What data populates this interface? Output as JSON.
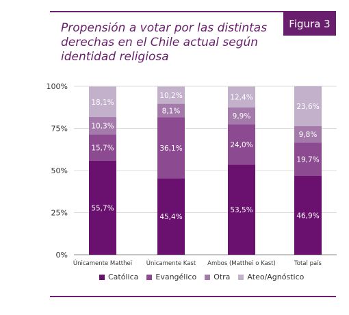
{
  "figure_label": "Figura 3",
  "title": "Propensión a votar por las distintas derechas en el Chile actual según identidad religiosa",
  "chart_data": {
    "type": "bar",
    "stacked": true,
    "categories": [
      "Únicamente Matthei",
      "Únicamente Kast",
      "Ambos (Matthei o Kast)",
      "Total país"
    ],
    "series": [
      {
        "name": "Católica",
        "color": "#6a1170",
        "values": [
          55.7,
          45.4,
          53.5,
          46.9
        ],
        "labels": [
          "55,7%",
          "45,4%",
          "53,5%",
          "46,9%"
        ]
      },
      {
        "name": "Evangélico",
        "color": "#8c4a90",
        "values": [
          15.7,
          36.1,
          24.0,
          19.7
        ],
        "labels": [
          "15,7%",
          "36,1%",
          "24,0%",
          "19,7%"
        ]
      },
      {
        "name": "Otra",
        "color": "#a47aab",
        "values": [
          10.3,
          8.1,
          9.9,
          9.8
        ],
        "labels": [
          "10,3%",
          "8,1%",
          "9,9%",
          "9,8%"
        ]
      },
      {
        "name": "Ateo/Agnóstico",
        "color": "#c3b0cb",
        "values": [
          18.1,
          10.2,
          12.4,
          23.6
        ],
        "labels": [
          "18,1%",
          "10,2%",
          "12,4%",
          "23,6%"
        ]
      }
    ],
    "y_ticks": [
      "0%",
      "25%",
      "50%",
      "75%",
      "100%"
    ],
    "ylim": [
      0,
      100
    ],
    "grid": true,
    "legend_position": "bottom"
  }
}
